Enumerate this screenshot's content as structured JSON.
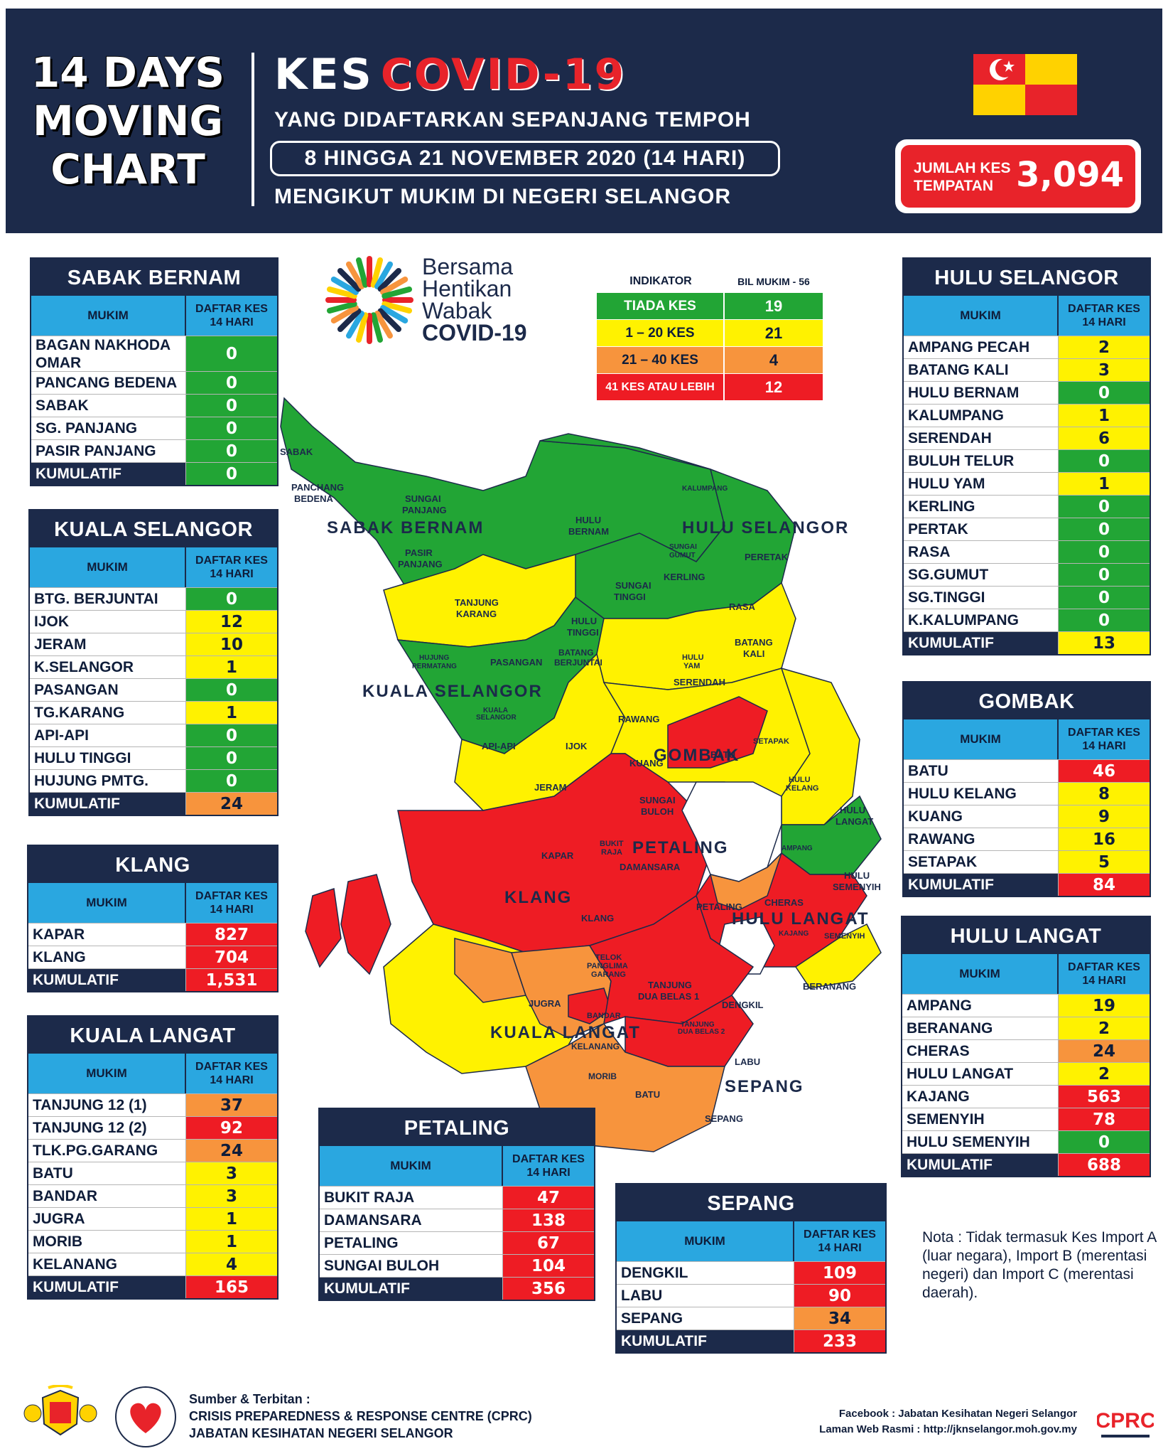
{
  "header": {
    "left_title": [
      "14 DAYS",
      "MOVING",
      "CHART"
    ],
    "kes": "KES",
    "covid": "COVID-19",
    "subtitle1": "YANG DIDAFTARKAN SEPANJANG TEMPOH",
    "date_range": "8 HINGGA 21 NOVEMBER 2020 (14 HARI)",
    "subtitle2": "MENGIKUT MUKIM DI NEGERI SELANGOR",
    "total_label": [
      "JUMLAH KES",
      "TEMPATAN"
    ],
    "total_value": "3,094"
  },
  "logo_text": [
    "Bersama",
    "Hentikan",
    "Wabak",
    "COVID-19"
  ],
  "indicator": {
    "header_label": "INDIKATOR",
    "header_count": "BIL MUKIM - 56",
    "rows": [
      {
        "label": "TIADA KES",
        "count": "19"
      },
      {
        "label": "1 – 20 KES",
        "count": "21"
      },
      {
        "label": "21 – 40 KES",
        "count": "4"
      },
      {
        "label": "41 KES ATAU LEBIH",
        "count": "12"
      }
    ]
  },
  "table_header": {
    "mukim": "MUKIM",
    "daftar": [
      "DAFTAR KES",
      "14 HARI"
    ]
  },
  "colors": {
    "green": "#22a535",
    "yellow": "#fff200",
    "orange": "#f7943d",
    "red": "#ee1c24",
    "navy": "#1c2a4a",
    "blue": "#2aa7e0"
  },
  "tables": {
    "sabak_bernam": {
      "title": "SABAK BERNAM",
      "rows": [
        {
          "name": "BAGAN NAKHODA OMAR",
          "value": "0",
          "c": "g"
        },
        {
          "name": "PANCANG BEDENA",
          "value": "0",
          "c": "g"
        },
        {
          "name": "SABAK",
          "value": "0",
          "c": "g"
        },
        {
          "name": "SG. PANJANG",
          "value": "0",
          "c": "g"
        },
        {
          "name": "PASIR PANJANG",
          "value": "0",
          "c": "g"
        }
      ],
      "kumulatif_label": "KUMULATIF",
      "kumulatif": "0",
      "kc": "g"
    },
    "kuala_selangor": {
      "title": "KUALA SELANGOR",
      "rows": [
        {
          "name": "BTG. BERJUNTAI",
          "value": "0",
          "c": "g"
        },
        {
          "name": "IJOK",
          "value": "12",
          "c": "y"
        },
        {
          "name": "JERAM",
          "value": "10",
          "c": "y"
        },
        {
          "name": "K.SELANGOR",
          "value": "1",
          "c": "y"
        },
        {
          "name": "PASANGAN",
          "value": "0",
          "c": "g"
        },
        {
          "name": "TG.KARANG",
          "value": "1",
          "c": "y"
        },
        {
          "name": "API-API",
          "value": "0",
          "c": "g"
        },
        {
          "name": "HULU TINGGI",
          "value": "0",
          "c": "g"
        },
        {
          "name": "HUJUNG PMTG.",
          "value": "0",
          "c": "g"
        }
      ],
      "kumulatif_label": "KUMULATIF",
      "kumulatif": "24",
      "kc": "o"
    },
    "klang": {
      "title": "KLANG",
      "rows": [
        {
          "name": "KAPAR",
          "value": "827",
          "c": "r"
        },
        {
          "name": "KLANG",
          "value": "704",
          "c": "r"
        }
      ],
      "kumulatif_label": "KUMULATIF",
      "kumulatif": "1,531",
      "kc": "r"
    },
    "kuala_langat": {
      "title": "KUALA LANGAT",
      "rows": [
        {
          "name": "TANJUNG 12 (1)",
          "value": "37",
          "c": "o"
        },
        {
          "name": "TANJUNG 12 (2)",
          "value": "92",
          "c": "r"
        },
        {
          "name": "TLK.PG.GARANG",
          "value": "24",
          "c": "o"
        },
        {
          "name": "BATU",
          "value": "3",
          "c": "y"
        },
        {
          "name": "BANDAR",
          "value": "3",
          "c": "y"
        },
        {
          "name": "JUGRA",
          "value": "1",
          "c": "y"
        },
        {
          "name": "MORIB",
          "value": "1",
          "c": "y"
        },
        {
          "name": "KELANANG",
          "value": "4",
          "c": "y"
        }
      ],
      "kumulatif_label": "KUMULATIF",
      "kumulatif": "165",
      "kc": "r"
    },
    "petaling": {
      "title": "PETALING",
      "rows": [
        {
          "name": "BUKIT RAJA",
          "value": "47",
          "c": "r"
        },
        {
          "name": "DAMANSARA",
          "value": "138",
          "c": "r"
        },
        {
          "name": "PETALING",
          "value": "67",
          "c": "r"
        },
        {
          "name": "SUNGAI BULOH",
          "value": "104",
          "c": "r"
        }
      ],
      "kumulatif_label": "KUMULATIF",
      "kumulatif": "356",
      "kc": "r"
    },
    "sepang": {
      "title": "SEPANG",
      "rows": [
        {
          "name": "DENGKIL",
          "value": "109",
          "c": "r"
        },
        {
          "name": "LABU",
          "value": "90",
          "c": "r"
        },
        {
          "name": "SEPANG",
          "value": "34",
          "c": "o"
        }
      ],
      "kumulatif_label": "KUMULATIF",
      "kumulatif": "233",
      "kc": "r"
    },
    "hulu_selangor": {
      "title": "HULU SELANGOR",
      "rows": [
        {
          "name": "AMPANG PECAH",
          "value": "2",
          "c": "y"
        },
        {
          "name": "BATANG KALI",
          "value": "3",
          "c": "y"
        },
        {
          "name": "HULU BERNAM",
          "value": "0",
          "c": "g"
        },
        {
          "name": "KALUMPANG",
          "value": "1",
          "c": "y"
        },
        {
          "name": "SERENDAH",
          "value": "6",
          "c": "y"
        },
        {
          "name": "BULUH TELUR",
          "value": "0",
          "c": "g"
        },
        {
          "name": "HULU YAM",
          "value": "1",
          "c": "y"
        },
        {
          "name": "KERLING",
          "value": "0",
          "c": "g"
        },
        {
          "name": "PERTAK",
          "value": "0",
          "c": "g"
        },
        {
          "name": "RASA",
          "value": "0",
          "c": "g"
        },
        {
          "name": "SG.GUMUT",
          "value": "0",
          "c": "g"
        },
        {
          "name": "SG.TINGGI",
          "value": "0",
          "c": "g"
        },
        {
          "name": "K.KALUMPANG",
          "value": "0",
          "c": "g"
        }
      ],
      "kumulatif_label": "KUMULATIF",
      "kumulatif": "13",
      "kc": "y"
    },
    "gombak": {
      "title": "GOMBAK",
      "rows": [
        {
          "name": "BATU",
          "value": "46",
          "c": "r"
        },
        {
          "name": "HULU KELANG",
          "value": "8",
          "c": "y"
        },
        {
          "name": "KUANG",
          "value": "9",
          "c": "y"
        },
        {
          "name": "RAWANG",
          "value": "16",
          "c": "y"
        },
        {
          "name": "SETAPAK",
          "value": "5",
          "c": "y"
        }
      ],
      "kumulatif_label": "KUMULATIF",
      "kumulatif": "84",
      "kc": "r"
    },
    "hulu_langat": {
      "title": "HULU LANGAT",
      "rows": [
        {
          "name": "AMPANG",
          "value": "19",
          "c": "y"
        },
        {
          "name": "BERANANG",
          "value": "2",
          "c": "y"
        },
        {
          "name": "CHERAS",
          "value": "24",
          "c": "o"
        },
        {
          "name": "HULU LANGAT",
          "value": "2",
          "c": "y"
        },
        {
          "name": "KAJANG",
          "value": "563",
          "c": "r"
        },
        {
          "name": "SEMENYIH",
          "value": "78",
          "c": "r"
        },
        {
          "name": "HULU SEMENYIH",
          "value": "0",
          "c": "g"
        }
      ],
      "kumulatif_label": "KUMULATIF",
      "kumulatif": "688",
      "kc": "r"
    }
  },
  "map_labels": {
    "districts": {
      "sabak_bernam": "SABAK BERNAM",
      "hulu_selangor": "HULU SELANGOR",
      "kuala_selangor": "KUALA SELANGOR",
      "gombak": "GOMBAK",
      "petaling": "PETALING",
      "klang": "KLANG",
      "hulu_langat": "HULU LANGAT",
      "kuala_langat": "KUALA LANGAT",
      "sepang": "SEPANG"
    },
    "mukim": {
      "sabak": "SABAK",
      "pancang1": "PANCHANG",
      "pancang2": "BEDENA",
      "sgpanjang1": "SUNGAI",
      "sgpanjang2": "PANJANG",
      "pasirpanjang1": "PASIR",
      "pasirpanjang2": "PANJANG",
      "hulubernam1": "HULU",
      "hulubernam2": "BERNAM",
      "kalumpang": "KALUMPANG",
      "peretak": "PERETAK",
      "sggumut1": "SUNGAI",
      "sggumut2": "GUMUT",
      "kerling": "KERLING",
      "sgtinggi1": "SUNGAI",
      "sgtinggi2": "TINGGI",
      "rasa": "RASA",
      "tanjungkarang1": "TANJUNG",
      "tanjungkarang2": "KARANG",
      "hulutinggi1": "HULU",
      "hulutinggi2": "TINGGI",
      "batangkali1": "BATANG",
      "batangkali2": "KALI",
      "huluyam1": "HULU",
      "huluyam2": "YAM",
      "serendah": "SERENDAH",
      "hujungpermatang1": "HUJUNG",
      "hujungpermatang2": "PERMATANG",
      "pasangan": "PASANGAN",
      "batangberjuntai1": "BATANG",
      "batangberjuntai2": "BERJUNTAI",
      "kualaselangor1": "KUALA",
      "kualaselangor2": "SELANGOR",
      "rawang": "RAWANG",
      "apiapi": "API-API",
      "ijok": "IJOK",
      "kuang": "KUANG",
      "batu": "BATU",
      "setapak": "SETAPAK",
      "hulukelang1": "HULU",
      "hulukelang2": "KELANG",
      "hululangat1": "HULU",
      "hululangat2": "LANGAT",
      "jeram": "JERAM",
      "sgbuloh1": "SUNGAI",
      "sgbuloh2": "BULOH",
      "kapar": "KAPAR",
      "bukitraja1": "BUKIT",
      "bukitraja2": "RAJA",
      "damansara": "DAMANSARA",
      "ampang": "AMPANG",
      "hulusemenyih1": "HULU",
      "hulusemenyih2": "SEMENYIH",
      "klang": "KLANG",
      "petaling": "PETALING",
      "cheras": "CHERAS",
      "kajang": "KAJANG",
      "semenyih": "SEMENYIH",
      "telok1": "TELOK",
      "telok2": "PANGLIMA",
      "telok3": "GARANG",
      "tanjung1a": "TANJUNG",
      "tanjung1b": "DUA BELAS 1",
      "tanjung2a": "TANJUNG",
      "tanjung2b": "DUA BELAS 2",
      "beranang": "BERANANG",
      "jugra": "JUGRA",
      "bandar": "BANDAR",
      "dengkil": "DENGKIL",
      "kelanang": "KELANANG",
      "labu": "LABU",
      "morib": "MORIB",
      "batu2": "BATU",
      "sepang": "SEPANG"
    }
  },
  "nota": "Nota : Tidak termasuk Kes Import A (luar negara), Import B (merentasi negeri) dan Import C (merentasi daerah).",
  "footer": {
    "sumber": "Sumber & Terbitan :",
    "org1": "CRISIS PREPAREDNESS & RESPONSE CENTRE (CPRC)",
    "org2": "JABATAN KESIHATAN NEGERI SELANGOR",
    "facebook": "Facebook : Jabatan Kesihatan Negeri Selangor",
    "web": "Laman Web Rasmi : http://jknselangor.moh.gov.my",
    "cprc_logo": "CPRC"
  }
}
